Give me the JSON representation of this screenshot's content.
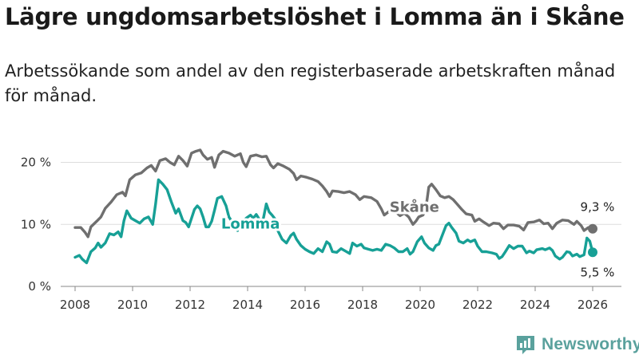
{
  "title": "Lägre ungdomsarbetslöshet i Lomma än i Skåne",
  "subtitle": "Arbetssökande som andel av den registerbaserade arbetskraften månad för månad.",
  "brand": {
    "name": "Newsworthy",
    "icon": "newsworthy-logo-icon"
  },
  "colors": {
    "skane": "#6f6f6f",
    "lomma": "#17a096",
    "grid": "#dddddd",
    "text": "#333333"
  },
  "chart_data": {
    "type": "line",
    "title": "Lägre ungdomsarbetslöshet i Lomma än i Skåne",
    "xlabel": "",
    "ylabel": "",
    "xlim": [
      2007.5,
      2027.0
    ],
    "ylim": [
      0,
      22
    ],
    "y_ticks": [
      0,
      10,
      20
    ],
    "y_tick_labels": [
      "0 %",
      "10 %",
      "20 %"
    ],
    "x_ticks": [
      2008,
      2010,
      2012,
      2014,
      2016,
      2018,
      2020,
      2022,
      2024,
      2026
    ],
    "x_tick_labels": [
      "2008",
      "2010",
      "2012",
      "2014",
      "2016",
      "2018",
      "2020",
      "2022",
      "2024",
      "2026"
    ],
    "grid": "horizontal",
    "legend": "inline labels",
    "series": [
      {
        "name": "Skåne",
        "label": "Skåne",
        "color": "#6f6f6f",
        "end_label": "9,3 %",
        "points": [
          [
            2008.0,
            9.5
          ],
          [
            2008.2,
            9.5
          ],
          [
            2008.35,
            8.7
          ],
          [
            2008.45,
            8.0
          ],
          [
            2008.55,
            9.6
          ],
          [
            2008.75,
            10.5
          ],
          [
            2008.9,
            11.2
          ],
          [
            2009.05,
            12.6
          ],
          [
            2009.25,
            13.6
          ],
          [
            2009.45,
            14.8
          ],
          [
            2009.65,
            15.2
          ],
          [
            2009.75,
            14.6
          ],
          [
            2009.9,
            17.2
          ],
          [
            2010.1,
            18.0
          ],
          [
            2010.3,
            18.3
          ],
          [
            2010.5,
            19.1
          ],
          [
            2010.65,
            19.5
          ],
          [
            2010.8,
            18.6
          ],
          [
            2010.95,
            20.3
          ],
          [
            2011.15,
            20.6
          ],
          [
            2011.3,
            20.0
          ],
          [
            2011.45,
            19.6
          ],
          [
            2011.6,
            21.0
          ],
          [
            2011.75,
            20.3
          ],
          [
            2011.9,
            19.4
          ],
          [
            2012.05,
            21.5
          ],
          [
            2012.2,
            21.8
          ],
          [
            2012.35,
            22.0
          ],
          [
            2012.45,
            21.2
          ],
          [
            2012.6,
            20.5
          ],
          [
            2012.75,
            20.8
          ],
          [
            2012.85,
            19.2
          ],
          [
            2013.0,
            21.2
          ],
          [
            2013.15,
            21.8
          ],
          [
            2013.35,
            21.5
          ],
          [
            2013.55,
            21.0
          ],
          [
            2013.75,
            21.4
          ],
          [
            2013.85,
            20.0
          ],
          [
            2013.95,
            19.3
          ],
          [
            2014.1,
            21.0
          ],
          [
            2014.3,
            21.2
          ],
          [
            2014.5,
            20.9
          ],
          [
            2014.65,
            21.0
          ],
          [
            2014.8,
            19.6
          ],
          [
            2014.9,
            19.1
          ],
          [
            2015.05,
            19.8
          ],
          [
            2015.25,
            19.4
          ],
          [
            2015.45,
            18.9
          ],
          [
            2015.6,
            18.2
          ],
          [
            2015.7,
            17.2
          ],
          [
            2015.85,
            17.8
          ],
          [
            2016.05,
            17.6
          ],
          [
            2016.25,
            17.3
          ],
          [
            2016.45,
            16.9
          ],
          [
            2016.6,
            16.2
          ],
          [
            2016.75,
            15.3
          ],
          [
            2016.85,
            14.5
          ],
          [
            2016.95,
            15.4
          ],
          [
            2017.15,
            15.3
          ],
          [
            2017.35,
            15.1
          ],
          [
            2017.55,
            15.3
          ],
          [
            2017.75,
            14.8
          ],
          [
            2017.9,
            14.0
          ],
          [
            2018.05,
            14.5
          ],
          [
            2018.3,
            14.3
          ],
          [
            2018.5,
            13.7
          ],
          [
            2018.65,
            12.5
          ],
          [
            2018.75,
            11.5
          ],
          [
            2018.95,
            12.2
          ],
          [
            2019.15,
            12.0
          ],
          [
            2019.3,
            11.4
          ],
          [
            2019.45,
            11.8
          ],
          [
            2019.6,
            11.2
          ],
          [
            2019.75,
            10.0
          ],
          [
            2019.85,
            10.5
          ],
          [
            2019.95,
            11.2
          ],
          [
            2020.1,
            11.5
          ],
          [
            2020.2,
            12.6
          ],
          [
            2020.3,
            16.0
          ],
          [
            2020.4,
            16.5
          ],
          [
            2020.55,
            15.6
          ],
          [
            2020.7,
            14.6
          ],
          [
            2020.85,
            14.3
          ],
          [
            2021.0,
            14.5
          ],
          [
            2021.15,
            14.0
          ],
          [
            2021.3,
            13.2
          ],
          [
            2021.45,
            12.4
          ],
          [
            2021.6,
            11.7
          ],
          [
            2021.8,
            11.5
          ],
          [
            2021.9,
            10.5
          ],
          [
            2022.05,
            10.9
          ],
          [
            2022.2,
            10.4
          ],
          [
            2022.4,
            9.8
          ],
          [
            2022.55,
            10.2
          ],
          [
            2022.75,
            10.1
          ],
          [
            2022.9,
            9.3
          ],
          [
            2023.05,
            9.9
          ],
          [
            2023.25,
            9.9
          ],
          [
            2023.45,
            9.7
          ],
          [
            2023.6,
            9.1
          ],
          [
            2023.75,
            10.3
          ],
          [
            2023.95,
            10.4
          ],
          [
            2024.15,
            10.7
          ],
          [
            2024.3,
            10.1
          ],
          [
            2024.45,
            10.2
          ],
          [
            2024.6,
            9.3
          ],
          [
            2024.75,
            10.2
          ],
          [
            2024.95,
            10.7
          ],
          [
            2025.15,
            10.6
          ],
          [
            2025.35,
            10.0
          ],
          [
            2025.45,
            10.5
          ],
          [
            2025.6,
            9.8
          ],
          [
            2025.7,
            9.0
          ],
          [
            2025.85,
            9.5
          ],
          [
            2026.0,
            9.3
          ]
        ]
      },
      {
        "name": "Lomma",
        "label": "Lomma",
        "color": "#17a096",
        "end_label": "5,5 %",
        "points": [
          [
            2008.0,
            4.7
          ],
          [
            2008.15,
            5.0
          ],
          [
            2008.25,
            4.4
          ],
          [
            2008.4,
            3.8
          ],
          [
            2008.55,
            5.6
          ],
          [
            2008.7,
            6.2
          ],
          [
            2008.8,
            7.0
          ],
          [
            2008.9,
            6.3
          ],
          [
            2009.05,
            7.0
          ],
          [
            2009.2,
            8.5
          ],
          [
            2009.35,
            8.3
          ],
          [
            2009.5,
            8.8
          ],
          [
            2009.6,
            8.0
          ],
          [
            2009.7,
            10.6
          ],
          [
            2009.8,
            12.2
          ],
          [
            2009.95,
            11.0
          ],
          [
            2010.1,
            10.6
          ],
          [
            2010.25,
            10.2
          ],
          [
            2010.4,
            10.9
          ],
          [
            2010.55,
            11.2
          ],
          [
            2010.7,
            10.0
          ],
          [
            2010.8,
            13.3
          ],
          [
            2010.9,
            17.2
          ],
          [
            2011.05,
            16.5
          ],
          [
            2011.2,
            15.6
          ],
          [
            2011.35,
            13.6
          ],
          [
            2011.5,
            11.8
          ],
          [
            2011.6,
            12.5
          ],
          [
            2011.75,
            10.6
          ],
          [
            2011.85,
            10.3
          ],
          [
            2011.95,
            9.6
          ],
          [
            2012.05,
            11.0
          ],
          [
            2012.15,
            12.4
          ],
          [
            2012.25,
            13.0
          ],
          [
            2012.35,
            12.5
          ],
          [
            2012.45,
            11.2
          ],
          [
            2012.55,
            9.6
          ],
          [
            2012.65,
            9.6
          ],
          [
            2012.75,
            10.5
          ],
          [
            2012.85,
            12.3
          ],
          [
            2012.95,
            14.2
          ],
          [
            2013.1,
            14.5
          ],
          [
            2013.25,
            13.0
          ],
          [
            2013.35,
            11.2
          ],
          [
            2013.45,
            10.5
          ],
          [
            2013.55,
            9.8
          ],
          [
            2013.65,
            9.0
          ],
          [
            2013.8,
            10.2
          ],
          [
            2013.95,
            11.0
          ],
          [
            2014.1,
            11.5
          ],
          [
            2014.2,
            11.0
          ],
          [
            2014.3,
            11.6
          ],
          [
            2014.45,
            10.5
          ],
          [
            2014.55,
            11.0
          ],
          [
            2014.65,
            13.3
          ],
          [
            2014.75,
            12.0
          ],
          [
            2014.85,
            11.5
          ],
          [
            2014.95,
            10.9
          ],
          [
            2015.05,
            9.0
          ],
          [
            2015.2,
            7.6
          ],
          [
            2015.35,
            7.0
          ],
          [
            2015.5,
            8.2
          ],
          [
            2015.6,
            8.6
          ],
          [
            2015.7,
            7.6
          ],
          [
            2015.85,
            6.6
          ],
          [
            2016.0,
            6.0
          ],
          [
            2016.15,
            5.6
          ],
          [
            2016.3,
            5.3
          ],
          [
            2016.45,
            6.1
          ],
          [
            2016.6,
            5.6
          ],
          [
            2016.75,
            7.2
          ],
          [
            2016.85,
            6.8
          ],
          [
            2016.95,
            5.6
          ],
          [
            2017.1,
            5.5
          ],
          [
            2017.25,
            6.1
          ],
          [
            2017.4,
            5.7
          ],
          [
            2017.55,
            5.3
          ],
          [
            2017.65,
            7.0
          ],
          [
            2017.8,
            6.5
          ],
          [
            2017.95,
            6.8
          ],
          [
            2018.05,
            6.2
          ],
          [
            2018.2,
            6.0
          ],
          [
            2018.35,
            5.8
          ],
          [
            2018.5,
            6.0
          ],
          [
            2018.65,
            5.8
          ],
          [
            2018.8,
            6.8
          ],
          [
            2018.95,
            6.6
          ],
          [
            2019.1,
            6.2
          ],
          [
            2019.25,
            5.6
          ],
          [
            2019.4,
            5.6
          ],
          [
            2019.55,
            6.1
          ],
          [
            2019.65,
            5.2
          ],
          [
            2019.75,
            5.6
          ],
          [
            2019.9,
            7.2
          ],
          [
            2020.05,
            8.0
          ],
          [
            2020.15,
            7.0
          ],
          [
            2020.3,
            6.2
          ],
          [
            2020.45,
            5.8
          ],
          [
            2020.55,
            6.6
          ],
          [
            2020.65,
            6.8
          ],
          [
            2020.75,
            8.0
          ],
          [
            2020.9,
            9.8
          ],
          [
            2021.0,
            10.2
          ],
          [
            2021.1,
            9.5
          ],
          [
            2021.25,
            8.6
          ],
          [
            2021.35,
            7.3
          ],
          [
            2021.5,
            7.0
          ],
          [
            2021.65,
            7.5
          ],
          [
            2021.75,
            7.2
          ],
          [
            2021.9,
            7.5
          ],
          [
            2022.0,
            6.5
          ],
          [
            2022.15,
            5.6
          ],
          [
            2022.3,
            5.6
          ],
          [
            2022.5,
            5.4
          ],
          [
            2022.65,
            5.2
          ],
          [
            2022.75,
            4.5
          ],
          [
            2022.85,
            4.8
          ],
          [
            2022.95,
            5.5
          ],
          [
            2023.1,
            6.6
          ],
          [
            2023.25,
            6.1
          ],
          [
            2023.4,
            6.5
          ],
          [
            2023.55,
            6.5
          ],
          [
            2023.7,
            5.4
          ],
          [
            2023.8,
            5.7
          ],
          [
            2023.95,
            5.4
          ],
          [
            2024.05,
            5.9
          ],
          [
            2024.25,
            6.1
          ],
          [
            2024.35,
            5.9
          ],
          [
            2024.5,
            6.2
          ],
          [
            2024.6,
            5.8
          ],
          [
            2024.7,
            4.9
          ],
          [
            2024.85,
            4.4
          ],
          [
            2024.95,
            4.7
          ],
          [
            2025.1,
            5.6
          ],
          [
            2025.2,
            5.5
          ],
          [
            2025.3,
            4.9
          ],
          [
            2025.45,
            5.2
          ],
          [
            2025.55,
            4.8
          ],
          [
            2025.7,
            5.1
          ],
          [
            2025.8,
            7.8
          ],
          [
            2025.9,
            7.3
          ],
          [
            2026.0,
            5.5
          ]
        ]
      }
    ]
  }
}
